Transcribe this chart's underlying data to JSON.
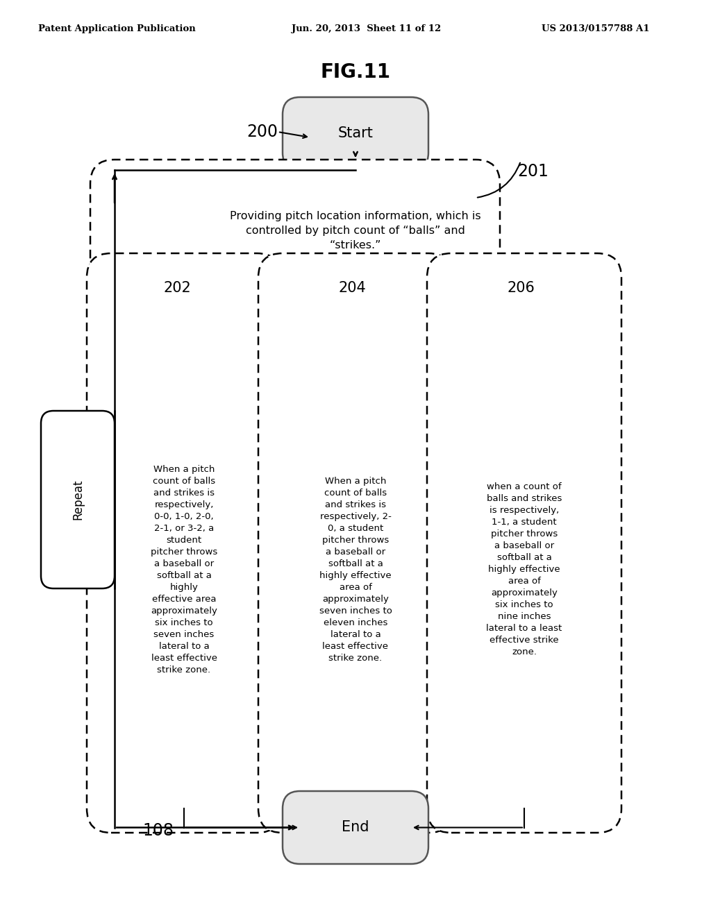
{
  "title": "FIG.11",
  "header_left": "Patent Application Publication",
  "header_center": "Jun. 20, 2013  Sheet 11 of 12",
  "header_right": "US 2013/0157788 A1",
  "start_label": "Start",
  "end_label": "End",
  "repeat_label": "Repeat",
  "label_200": "200",
  "label_201": "201",
  "label_202": "202",
  "label_204": "204",
  "label_206": "206",
  "label_108": "108",
  "box_top_text": "Providing pitch location information, which is\ncontrolled by pitch count of “balls” and\n“strikes.”",
  "box_202_text": "When a pitch\ncount of balls\nand strikes is\nrespectively,\n0-0, 1-0, 2-0,\n2-1, or 3-2, a\nstudent\npitcher throws\na baseball or\nsoftball at a\nhighly\neffective area\napproximately\nsix inches to\nseven inches\nlateral to a\nleast effective\nstrike zone.",
  "box_204_text": "When a pitch\ncount of balls\nand strikes is\nrespectively, 2-\n0, a student\npitcher throws\na baseball or\nsoftball at a\nhighly effective\narea of\napproximately\nseven inches to\neleven inches\nlateral to a\nleast effective\nstrike zone.",
  "box_206_text": "when a count of\nballs and strikes\nis respectively,\n1-1, a student\npitcher throws\na baseball or\nsoftball at a\nhighly effective\narea of\napproximately\nsix inches to\nnine inches\nlateral to a least\neffective strike\nzone.",
  "bg_color": "#ffffff",
  "text_color": "#000000",
  "line_color": "#000000"
}
